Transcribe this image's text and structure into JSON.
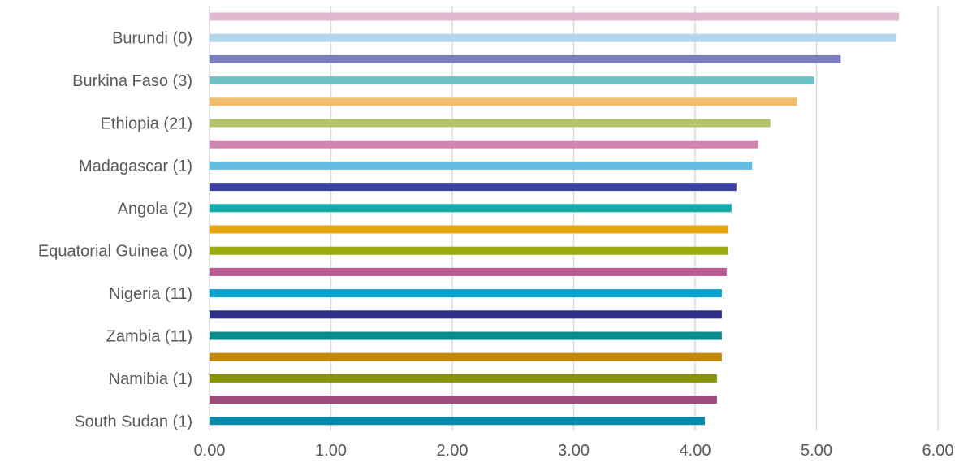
{
  "chart_data": {
    "type": "bar",
    "orientation": "horizontal",
    "xlim": [
      0,
      6
    ],
    "x_ticks": [
      "0.00",
      "1.00",
      "2.00",
      "3.00",
      "4.00",
      "5.00",
      "6.00"
    ],
    "grid": "vertical",
    "legend": "none",
    "bars": [
      {
        "label": "",
        "value": 5.68,
        "color": "#e0b8cf"
      },
      {
        "label": "Burundi (0)",
        "value": 5.66,
        "color": "#b3d6ec"
      },
      {
        "label": "",
        "value": 5.2,
        "color": "#7b7dbf"
      },
      {
        "label": "Burkina Faso (3)",
        "value": 4.98,
        "color": "#6ec2c6"
      },
      {
        "label": "",
        "value": 4.84,
        "color": "#f2bd6b"
      },
      {
        "label": "Ethiopia (21)",
        "value": 4.62,
        "color": "#b6c26c"
      },
      {
        "label": "",
        "value": 4.52,
        "color": "#cf86b1"
      },
      {
        "label": "Madagascar (1)",
        "value": 4.47,
        "color": "#62bde0"
      },
      {
        "label": "",
        "value": 4.34,
        "color": "#3a41a0"
      },
      {
        "label": "Angola (2)",
        "value": 4.3,
        "color": "#13acab"
      },
      {
        "label": "",
        "value": 4.27,
        "color": "#e9a50c"
      },
      {
        "label": "Equatorial Guinea (0)",
        "value": 4.27,
        "color": "#99ab0c"
      },
      {
        "label": "",
        "value": 4.26,
        "color": "#bc5991"
      },
      {
        "label": "Nigeria (11)",
        "value": 4.22,
        "color": "#07a1cd"
      },
      {
        "label": "",
        "value": 4.22,
        "color": "#2e3087"
      },
      {
        "label": "Zambia (11)",
        "value": 4.22,
        "color": "#078b8d"
      },
      {
        "label": "",
        "value": 4.22,
        "color": "#c3870a"
      },
      {
        "label": "Namibia (1)",
        "value": 4.18,
        "color": "#8a9308"
      },
      {
        "label": "",
        "value": 4.18,
        "color": "#9c4b7b"
      },
      {
        "label": "South Sudan (1)",
        "value": 4.08,
        "color": "#078aa8"
      }
    ]
  }
}
